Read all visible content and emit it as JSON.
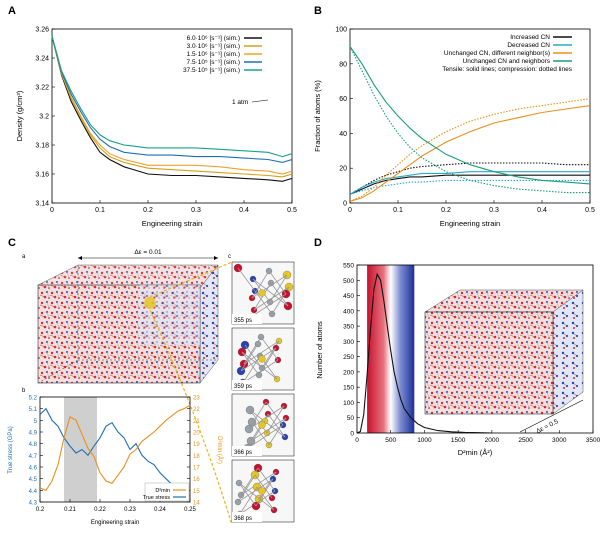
{
  "panels": {
    "A": {
      "letter": "A",
      "annotation": "1 atm",
      "chart_data": {
        "type": "line",
        "xlabel": "Engineering strain",
        "ylabel": "Density (g/cm³)",
        "xlim": [
          0,
          0.5
        ],
        "ylim": [
          3.14,
          3.26
        ],
        "xticks": [
          "0",
          "0.1",
          "0.2",
          "0.3",
          "0.4",
          "0.5"
        ],
        "yticks": [
          "3.14",
          "3.16",
          "3.18",
          "3.2",
          "3.22",
          "3.24",
          "3.26"
        ],
        "legend_position": "top-right",
        "x": [
          0,
          0.02,
          0.04,
          0.06,
          0.08,
          0.1,
          0.12,
          0.15,
          0.2,
          0.25,
          0.3,
          0.35,
          0.4,
          0.45,
          0.48,
          0.5
        ],
        "series": [
          {
            "name": "6.0·10⁶ [s⁻¹] (sim.)",
            "color": "#111111",
            "values": [
              3.255,
              3.228,
              3.21,
              3.197,
              3.185,
              3.175,
              3.17,
              3.165,
              3.16,
              3.159,
              3.159,
              3.158,
              3.157,
              3.156,
              3.155,
              3.157
            ]
          },
          {
            "name": "3.0·10⁶ [s⁻¹] (sim.)",
            "color": "#d4a017",
            "values": [
              3.255,
              3.229,
              3.212,
              3.199,
              3.187,
              3.178,
              3.172,
              3.168,
              3.164,
              3.163,
              3.162,
              3.161,
              3.16,
              3.159,
              3.158,
              3.16
            ]
          },
          {
            "name": "1.5·10⁶ [s⁻¹] (sim.)",
            "color": "#f0a030",
            "values": [
              3.255,
              3.229,
              3.213,
              3.2,
              3.188,
              3.18,
              3.174,
              3.17,
              3.166,
              3.166,
              3.166,
              3.165,
              3.163,
              3.162,
              3.16,
              3.162
            ]
          },
          {
            "name": "7.5·10⁵ [s⁻¹] (sim.)",
            "color": "#1f6fb4",
            "values": [
              3.255,
              3.23,
              3.215,
              3.203,
              3.192,
              3.184,
              3.179,
              3.175,
              3.173,
              3.173,
              3.172,
              3.172,
              3.171,
              3.17,
              3.168,
              3.17
            ]
          },
          {
            "name": "37.5·10⁵ [s⁻¹] (sim.)",
            "color": "#1aa08a",
            "values": [
              3.255,
              3.231,
              3.217,
              3.205,
              3.194,
              3.187,
              3.183,
              3.18,
              3.178,
              3.178,
              3.178,
              3.177,
              3.176,
              3.175,
              3.172,
              3.174
            ]
          }
        ]
      }
    },
    "B": {
      "letter": "B",
      "chart_data": {
        "type": "line",
        "xlabel": "Engineering strain",
        "ylabel": "Fraction of atoms (%)",
        "xlim": [
          0,
          0.5
        ],
        "ylim": [
          0,
          100
        ],
        "xticks": [
          "0",
          "0.1",
          "0.2",
          "0.3",
          "0.4",
          "0.5"
        ],
        "yticks": [
          "0",
          "20",
          "40",
          "60",
          "80",
          "100"
        ],
        "legend_position": "top-right",
        "note": "Tensile: solid lines; compression: dotted lines",
        "x": [
          0,
          0.025,
          0.05,
          0.075,
          0.1,
          0.125,
          0.15,
          0.2,
          0.25,
          0.3,
          0.35,
          0.4,
          0.45,
          0.5
        ],
        "series": [
          {
            "name": "Increased CN",
            "color": "#111111",
            "style": "solid",
            "values": [
              5,
              8,
              11,
              13,
              14,
              15,
              15,
              16,
              16,
              16,
              16,
              16,
              16,
              16
            ]
          },
          {
            "name": "Increased CN (compression)",
            "color": "#111111",
            "style": "dotted",
            "values": [
              5,
              9,
              13,
              16,
              18,
              20,
              21,
              22,
              23,
              23,
              23,
              23,
              22,
              22
            ]
          },
          {
            "name": "Decreased CN",
            "color": "#2aa7c9",
            "style": "solid",
            "values": [
              5,
              9,
              12,
              14,
              15,
              16,
              17,
              17,
              18,
              18,
              18,
              18,
              18,
              18
            ]
          },
          {
            "name": "Decreased CN (compression)",
            "color": "#2aa7c9",
            "style": "dotted",
            "values": [
              5,
              7,
              9,
              10,
              11,
              12,
              12,
              13,
              13,
              13,
              13,
              13,
              13,
              13
            ]
          },
          {
            "name": "Unchanged CN, different neighbor(s)",
            "color": "#e8901a",
            "style": "solid",
            "values": [
              1,
              3,
              7,
              12,
              17,
              22,
              27,
              35,
              41,
              46,
              49,
              52,
              54,
              56
            ]
          },
          {
            "name": "Unchanged CN, different neighbor(s) (compression)",
            "color": "#e8901a",
            "style": "dotted",
            "values": [
              1,
              4,
              9,
              16,
              22,
              28,
              33,
              41,
              47,
              51,
              54,
              56,
              58,
              60
            ]
          },
          {
            "name": "Unchanged CN and neighbors",
            "color": "#1a9e7a",
            "style": "solid",
            "values": [
              90,
              80,
              68,
              58,
              50,
              43,
              37,
              28,
              22,
              18,
              15,
              13,
              12,
              11
            ]
          },
          {
            "name": "Unchanged CN and neighbors (compression)",
            "color": "#1a9e7a",
            "style": "dotted",
            "values": [
              90,
              76,
              62,
              50,
              40,
              32,
              26,
              18,
              13,
              10,
              8,
              7,
              6,
              6
            ]
          }
        ]
      }
    },
    "C": {
      "letter": "C",
      "sub_a": "a",
      "sub_b": "b",
      "sub_c": "c",
      "strain_label": "Δε = 0.01",
      "snapshots": [
        "355 ps",
        "359 ps",
        "366 ps",
        "368 ps"
      ],
      "chart_data": {
        "type": "line",
        "xlabel": "Engineering strain",
        "ylabel": "True stress (GPa)",
        "y2label": "D²min (Å²)",
        "xlim": [
          0.2,
          0.25
        ],
        "ylim": [
          4.3,
          5.2
        ],
        "y2lim": [
          14,
          23
        ],
        "xticks": [
          "0.2",
          "0.21",
          "0.22",
          "0.23",
          "0.24",
          "0.25"
        ],
        "yticks": [
          "4.3",
          "4.4",
          "4.5",
          "4.6",
          "4.7",
          "4.8",
          "4.9",
          "5",
          "5.1",
          "5.2"
        ],
        "y2ticks": [
          "14",
          "15",
          "16",
          "17",
          "18",
          "19",
          "20",
          "21",
          "22",
          "23"
        ],
        "shaded_range": [
          0.208,
          0.219
        ],
        "legend": [
          "D²min",
          "True stress"
        ],
        "x": [
          0.2,
          0.202,
          0.204,
          0.206,
          0.208,
          0.21,
          0.212,
          0.214,
          0.216,
          0.218,
          0.22,
          0.222,
          0.224,
          0.226,
          0.228,
          0.23,
          0.232,
          0.234,
          0.236,
          0.238,
          0.24,
          0.242,
          0.244,
          0.246,
          0.248,
          0.25
        ],
        "series": [
          {
            "name": "True stress",
            "color": "#1f6fb4",
            "axis": "left",
            "values": [
              5.05,
              5.1,
              5.0,
              4.95,
              4.85,
              4.78,
              4.72,
              4.75,
              4.7,
              4.78,
              4.85,
              4.95,
              4.98,
              4.9,
              4.85,
              4.75,
              4.8,
              4.7,
              4.65,
              4.62,
              4.55,
              4.5,
              4.45,
              4.42,
              4.38,
              4.35
            ]
          },
          {
            "name": "D²min",
            "color": "#e8901a",
            "axis": "right",
            "values": [
              15.2,
              15.0,
              15.8,
              17.2,
              19.5,
              21.3,
              21.0,
              19.8,
              18.6,
              17.9,
              16.5,
              15.8,
              15.6,
              16.3,
              17.0,
              18.1,
              18.5,
              19.2,
              19.6,
              20.0,
              20.5,
              21.0,
              21.4,
              21.8,
              22.0,
              22.3
            ]
          }
        ]
      }
    },
    "D": {
      "letter": "D",
      "strain_label": "Δε = 0.5",
      "chart_data": {
        "type": "line",
        "xlabel": "D²min (Å²)",
        "ylabel": "Number of atoms",
        "xlim": [
          0,
          3500
        ],
        "ylim": [
          0,
          550
        ],
        "xticks": [
          "0",
          "500",
          "1000",
          "1500",
          "2000",
          "2500",
          "3000",
          "3500"
        ],
        "yticks": [
          "0",
          "50",
          "100",
          "150",
          "200",
          "250",
          "300",
          "350",
          "400",
          "450",
          "500",
          "550"
        ],
        "x": [
          0,
          50,
          100,
          150,
          200,
          250,
          300,
          350,
          400,
          450,
          500,
          550,
          600,
          650,
          700,
          800,
          900,
          1000,
          1200,
          1400,
          1600,
          1800,
          2000
        ],
        "series": [
          {
            "name": "Distribution",
            "color": "#111111",
            "values": [
              0,
              5,
              60,
              190,
              340,
              470,
              520,
              500,
              430,
              350,
              270,
              200,
              150,
              110,
              80,
              50,
              30,
              18,
              8,
              4,
              2,
              1,
              0
            ]
          }
        ]
      }
    }
  }
}
